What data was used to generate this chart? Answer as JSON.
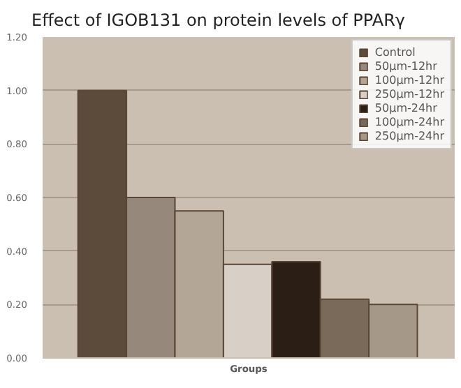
{
  "chart_data": {
    "type": "bar",
    "title": "Effect of IGOB131 on protein levels of PPARγ",
    "xlabel": "Groups",
    "categories": [
      null
    ],
    "series": [
      {
        "name": "Control",
        "color": "#5c4a3a",
        "values": [
          1.0
        ]
      },
      {
        "name": "50μm-12hr",
        "color": "#96887a",
        "values": [
          0.6
        ]
      },
      {
        "name": "100μm-12hr",
        "color": "#b4a696",
        "values": [
          0.55
        ]
      },
      {
        "name": "250μm-12hr",
        "color": "#d8d0c6",
        "values": [
          0.35
        ]
      },
      {
        "name": "50μm-24hr",
        "color": "#2b1e14",
        "values": [
          0.36
        ]
      },
      {
        "name": "100μm-24hr",
        "color": "#7a6a5a",
        "values": [
          0.22
        ]
      },
      {
        "name": "250μm-24hr",
        "color": "#a59888",
        "values": [
          0.2
        ]
      }
    ],
    "ylim": [
      0,
      1.2
    ],
    "yticks": [
      {
        "value": 0,
        "label": "0.00"
      },
      {
        "value": 0.2,
        "label": "0.20"
      },
      {
        "value": 0.4,
        "label": "0.40"
      },
      {
        "value": 0.6,
        "label": "0.60"
      },
      {
        "value": 0.8,
        "label": "0.80"
      },
      {
        "value": 1.0,
        "label": "1.00"
      },
      {
        "value": 1.2,
        "label": "1.20"
      }
    ],
    "grid": "y",
    "legend": "top right"
  }
}
